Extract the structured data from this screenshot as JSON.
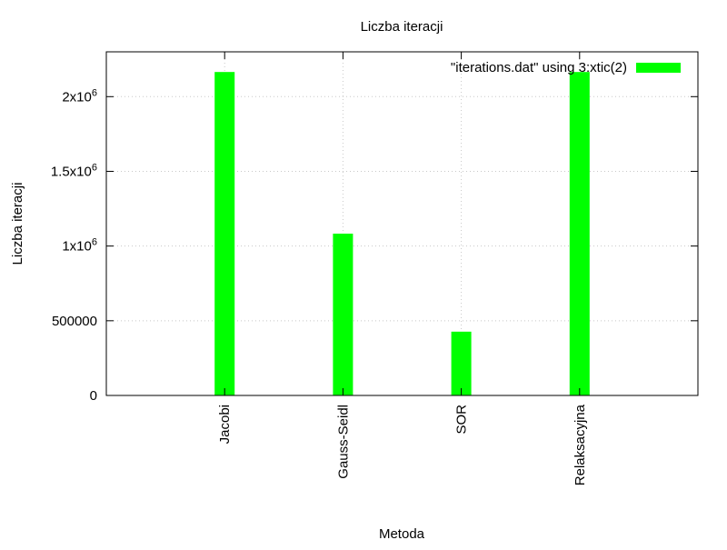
{
  "chart_data": {
    "type": "bar",
    "title": "Liczba iteracji",
    "xlabel": "Metoda",
    "ylabel": "Liczba iteracji",
    "categories": [
      "Jacobi",
      "Gauss-Seidl",
      "SOR",
      "Relaksacyjna"
    ],
    "series": [
      {
        "name": "\"iterations.dat\" using 3:xtic(2)",
        "values": [
          2165000,
          1083000,
          427000,
          2165000
        ]
      }
    ],
    "ylim": [
      0,
      2300000
    ],
    "xlim": [
      -1,
      4
    ],
    "y_ticks": [
      {
        "value": 0,
        "label": "0"
      },
      {
        "value": 500000,
        "label": "500000"
      },
      {
        "value": 1000000,
        "label": "1x10",
        "exp": "6"
      },
      {
        "value": 1500000,
        "label": "1.5x10",
        "exp": "6"
      },
      {
        "value": 2000000,
        "label": "2x10",
        "exp": "6"
      }
    ],
    "grid": true,
    "legend_position": "top-right",
    "bar_color": "#00ff00"
  }
}
